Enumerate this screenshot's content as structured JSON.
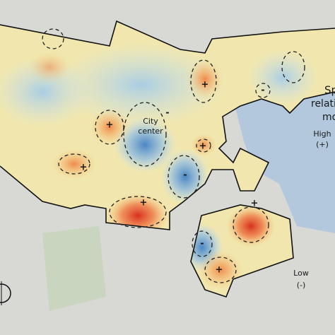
{
  "map": {
    "city_label": [
      "City",
      "center"
    ],
    "markers": [
      "+",
      "+",
      "+",
      "+",
      "+",
      "+",
      "+",
      "-",
      "-",
      "-",
      "-"
    ],
    "legend": {
      "title_lines": [
        "Sp",
        "relativ",
        "mo"
      ],
      "high": "High",
      "high_sign": "(+)",
      "low": "Low",
      "low_sign": "(-)"
    }
  }
}
